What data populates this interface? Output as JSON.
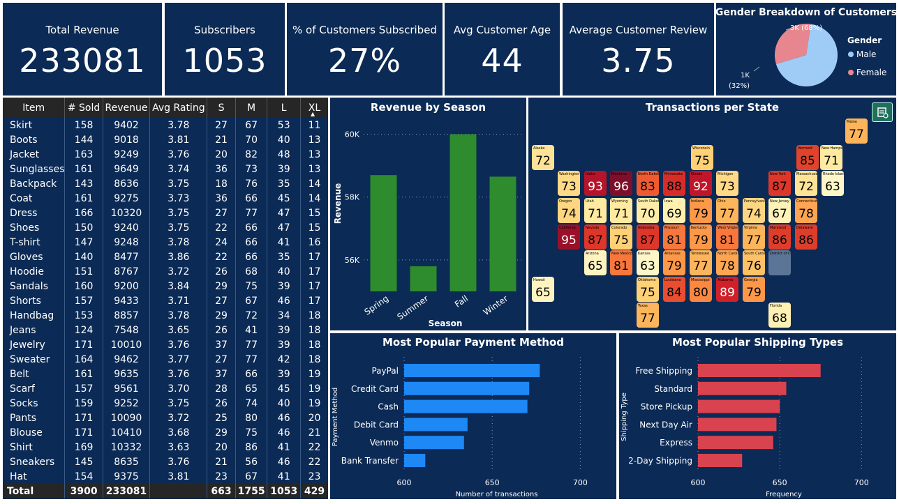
{
  "kpis": [
    {
      "label": "Total Revenue",
      "value": "233081"
    },
    {
      "label": "Subscribers",
      "value": "1053"
    },
    {
      "label": "% of Customers Subscribed",
      "value": "27%"
    },
    {
      "label": "Avg Customer Age",
      "value": "44"
    },
    {
      "label": "Average Customer Review",
      "value": "3.75"
    }
  ],
  "gender": {
    "title": "Gender Breakdown of Customers",
    "legend_title": "Gender",
    "male_label": "Male",
    "female_label": "Female",
    "male_annotation": "3K (68%)",
    "female_annotation_1": "1K",
    "female_annotation_2": "(32%)",
    "colors": {
      "male": "#9fcbf7",
      "female": "#e8868f"
    }
  },
  "table": {
    "headers": [
      "Item",
      "# Sold",
      "Revenue",
      "Avg Rating",
      "S",
      "M",
      "L",
      "XL"
    ],
    "rows": [
      [
        "Skirt",
        "158",
        "9402",
        "3.78",
        "27",
        "67",
        "53",
        "11"
      ],
      [
        "Boots",
        "144",
        "9018",
        "3.81",
        "21",
        "70",
        "40",
        "13"
      ],
      [
        "Jacket",
        "163",
        "9249",
        "3.76",
        "20",
        "82",
        "48",
        "13"
      ],
      [
        "Sunglasses",
        "161",
        "9649",
        "3.74",
        "36",
        "73",
        "39",
        "13"
      ],
      [
        "Backpack",
        "143",
        "8636",
        "3.75",
        "18",
        "76",
        "35",
        "14"
      ],
      [
        "Coat",
        "161",
        "9275",
        "3.73",
        "36",
        "66",
        "45",
        "14"
      ],
      [
        "Dress",
        "166",
        "10320",
        "3.75",
        "27",
        "77",
        "47",
        "15"
      ],
      [
        "Shoes",
        "150",
        "9240",
        "3.75",
        "22",
        "66",
        "47",
        "15"
      ],
      [
        "T-shirt",
        "147",
        "9248",
        "3.78",
        "24",
        "66",
        "41",
        "16"
      ],
      [
        "Gloves",
        "140",
        "8477",
        "3.86",
        "22",
        "66",
        "35",
        "17"
      ],
      [
        "Hoodie",
        "151",
        "8767",
        "3.72",
        "26",
        "68",
        "40",
        "17"
      ],
      [
        "Sandals",
        "160",
        "9200",
        "3.84",
        "29",
        "75",
        "39",
        "17"
      ],
      [
        "Shorts",
        "157",
        "9433",
        "3.71",
        "27",
        "67",
        "46",
        "17"
      ],
      [
        "Handbag",
        "153",
        "8857",
        "3.78",
        "29",
        "72",
        "34",
        "18"
      ],
      [
        "Jeans",
        "124",
        "7548",
        "3.65",
        "26",
        "41",
        "39",
        "18"
      ],
      [
        "Jewelry",
        "171",
        "10010",
        "3.76",
        "37",
        "77",
        "39",
        "18"
      ],
      [
        "Sweater",
        "164",
        "9462",
        "3.77",
        "27",
        "77",
        "42",
        "18"
      ],
      [
        "Belt",
        "161",
        "9635",
        "3.76",
        "37",
        "66",
        "39",
        "19"
      ],
      [
        "Scarf",
        "157",
        "9561",
        "3.70",
        "28",
        "65",
        "45",
        "19"
      ],
      [
        "Socks",
        "159",
        "9252",
        "3.75",
        "26",
        "74",
        "40",
        "19"
      ],
      [
        "Pants",
        "171",
        "10090",
        "3.72",
        "25",
        "80",
        "46",
        "20"
      ],
      [
        "Blouse",
        "171",
        "10410",
        "3.68",
        "29",
        "75",
        "46",
        "21"
      ],
      [
        "Shirt",
        "169",
        "10332",
        "3.63",
        "20",
        "86",
        "41",
        "22"
      ],
      [
        "Sneakers",
        "145",
        "8635",
        "3.76",
        "21",
        "56",
        "46",
        "22"
      ],
      [
        "Hat",
        "154",
        "9375",
        "3.81",
        "23",
        "67",
        "41",
        "23"
      ]
    ],
    "total": [
      "Total",
      "3900",
      "233081",
      "",
      "663",
      "1755",
      "1053",
      "429"
    ]
  },
  "season_chart": {
    "title": "Revenue by Season",
    "chart_data": {
      "type": "bar",
      "categories": [
        "Spring",
        "Summer",
        "Fall",
        "Winter"
      ],
      "values": [
        58700,
        55800,
        60000,
        58650
      ],
      "xlabel": "Season",
      "ylabel": "Revenue",
      "ylim": [
        55000,
        60500
      ],
      "ticks": [
        56000,
        58000,
        60000
      ],
      "tick_labels": [
        "56K",
        "58K",
        "60K"
      ],
      "color": "#2e8b2e"
    }
  },
  "states": {
    "title": "Transactions per State",
    "items": [
      {
        "name": "Maine",
        "value": "77",
        "color": "#fdb55c"
      },
      {
        "name": "Alaska",
        "value": "72",
        "color": "#fee396"
      },
      {
        "name": "Wisconsin",
        "value": "75",
        "color": "#fed176"
      },
      {
        "name": "Vermont",
        "value": "85",
        "color": "#e0432c"
      },
      {
        "name": "New Hampshire",
        "value": "71",
        "color": "#feeaa0"
      },
      {
        "name": "Washington",
        "value": "73",
        "color": "#fed986"
      },
      {
        "name": "Idaho",
        "value": "93",
        "color": "#b5142a"
      },
      {
        "name": "Montana",
        "value": "96",
        "color": "#7d0f2b"
      },
      {
        "name": "North Dakota",
        "value": "83",
        "color": "#ef5a31"
      },
      {
        "name": "Minnesota",
        "value": "88",
        "color": "#d72d29"
      },
      {
        "name": "Illinois",
        "value": "92",
        "color": "#c0162a"
      },
      {
        "name": "Michigan",
        "value": "73",
        "color": "#fed986"
      },
      {
        "name": "New York",
        "value": "87",
        "color": "#dc372a"
      },
      {
        "name": "Massachusetts",
        "value": "72",
        "color": "#fee396"
      },
      {
        "name": "Rhode Island",
        "value": "63",
        "color": "#fff6c8"
      },
      {
        "name": "Oregon",
        "value": "74",
        "color": "#fed580"
      },
      {
        "name": "Utah",
        "value": "71",
        "color": "#feeaa0"
      },
      {
        "name": "Wyoming",
        "value": "71",
        "color": "#feeaa0"
      },
      {
        "name": "South Dakota",
        "value": "70",
        "color": "#feeda8"
      },
      {
        "name": "Iowa",
        "value": "69",
        "color": "#fff0b0"
      },
      {
        "name": "Indiana",
        "value": "79",
        "color": "#fd9849"
      },
      {
        "name": "Ohio",
        "value": "77",
        "color": "#fdb55c"
      },
      {
        "name": "Pennsylvania",
        "value": "74",
        "color": "#fed580"
      },
      {
        "name": "New Jersey",
        "value": "67",
        "color": "#fff2b8"
      },
      {
        "name": "Connecticut",
        "value": "78",
        "color": "#fda552"
      },
      {
        "name": "California",
        "value": "95",
        "color": "#9a1029"
      },
      {
        "name": "Nevada",
        "value": "87",
        "color": "#dc372a"
      },
      {
        "name": "Colorado",
        "value": "75",
        "color": "#fed176"
      },
      {
        "name": "Nebraska",
        "value": "87",
        "color": "#dc372a"
      },
      {
        "name": "Missouri",
        "value": "81",
        "color": "#f7773c"
      },
      {
        "name": "Kentucky",
        "value": "79",
        "color": "#fd9849"
      },
      {
        "name": "West Virginia",
        "value": "81",
        "color": "#f7773c"
      },
      {
        "name": "Virginia",
        "value": "77",
        "color": "#fdb55c"
      },
      {
        "name": "Maryland",
        "value": "86",
        "color": "#dd3e2b"
      },
      {
        "name": "Delaware",
        "value": "86",
        "color": "#dd3e2b"
      },
      {
        "name": "Arizona",
        "value": "65",
        "color": "#fff4c0"
      },
      {
        "name": "New Mexico",
        "value": "81",
        "color": "#f7773c"
      },
      {
        "name": "Kansas",
        "value": "63",
        "color": "#fff6c8"
      },
      {
        "name": "Arkansas",
        "value": "79",
        "color": "#fd9849"
      },
      {
        "name": "Tennessee",
        "value": "77",
        "color": "#fdb55c"
      },
      {
        "name": "North Carolina",
        "value": "78",
        "color": "#fda552"
      },
      {
        "name": "South Carolina",
        "value": "76",
        "color": "#fdc167"
      },
      {
        "name": "District of Columbia",
        "value": "",
        "color": "#5b7597"
      },
      {
        "name": "Hawaii",
        "value": "65",
        "color": "#fff4c0"
      },
      {
        "name": "Oklahoma",
        "value": "75",
        "color": "#fed176"
      },
      {
        "name": "Louisiana",
        "value": "84",
        "color": "#e84e2f"
      },
      {
        "name": "Mississippi",
        "value": "80",
        "color": "#fa8842"
      },
      {
        "name": "Alabama",
        "value": "89",
        "color": "#d0202a"
      },
      {
        "name": "Georgia",
        "value": "79",
        "color": "#fd9849"
      },
      {
        "name": "Texas",
        "value": "77",
        "color": "#fdb55c"
      },
      {
        "name": "Florida",
        "value": "68",
        "color": "#fff1b4"
      }
    ]
  },
  "payment_chart": {
    "title": "Most Popular Payment Method",
    "chart_data": {
      "type": "bar",
      "orientation": "horizontal",
      "categories": [
        "PayPal",
        "Credit Card",
        "Cash",
        "Debit Card",
        "Venmo",
        "Bank Transfer"
      ],
      "values": [
        677,
        671,
        670,
        636,
        634,
        612
      ],
      "xlabel": "Number of transactions",
      "ylabel": "Payment Method",
      "xlim": [
        600,
        705
      ],
      "ticks": [
        600,
        650,
        700
      ],
      "color": "#1e88f5"
    }
  },
  "shipping_chart": {
    "title": "Most Popular Shipping Types",
    "chart_data": {
      "type": "bar",
      "orientation": "horizontal",
      "categories": [
        "Free Shipping",
        "Standard",
        "Store Pickup",
        "Next Day Air",
        "Express",
        "2-Day Shipping"
      ],
      "values": [
        675,
        654,
        650,
        648,
        646,
        627
      ],
      "xlabel": "Frequency",
      "ylabel": "Shipping Type",
      "xlim": [
        600,
        705
      ],
      "ticks": [
        600,
        650,
        700
      ],
      "color": "#d9434f"
    }
  }
}
